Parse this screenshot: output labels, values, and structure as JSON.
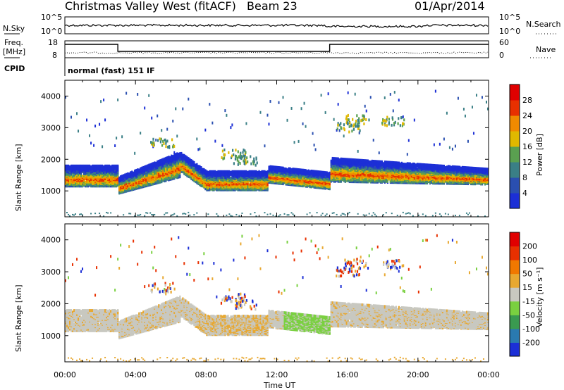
{
  "header": {
    "station": "Christmas Valley West (fitACF)",
    "beam": "Beam 23",
    "date": "01/Apr/2014"
  },
  "noise_panel": {
    "left_label": "N.Sky",
    "right_label": "N.Search",
    "left_ticks": [
      "10^5",
      "10^0"
    ],
    "right_ticks": [
      "10^5",
      "10^0"
    ]
  },
  "freq_panel": {
    "left_label": "Freq.",
    "left_unit": "[MHz]",
    "right_label": "Nave",
    "left_ticks": [
      "18",
      "8"
    ],
    "right_ticks": [
      "60",
      "0"
    ],
    "freq_steps": [
      {
        "from": 0,
        "to": 3.0,
        "level": "high"
      },
      {
        "from": 3.0,
        "to": 15.0,
        "level": "low"
      },
      {
        "from": 15.0,
        "to": 24,
        "level": "high"
      }
    ]
  },
  "cpid_panel": {
    "label": "CPID",
    "mode_text": "normal (fast) 151 IF"
  },
  "chart_data": [
    {
      "type": "heatmap",
      "name": "power",
      "ylabel": "Slant Range [km]",
      "xlabel": "Time UT",
      "ylim": [
        180,
        4500
      ],
      "yticks": [
        1000,
        2000,
        3000,
        4000
      ],
      "xticks": [
        "00:00",
        "04:00",
        "08:00",
        "12:00",
        "16:00",
        "20:00",
        "00:00"
      ],
      "xlim_hours": [
        0,
        24
      ],
      "colorbar": {
        "label": "Power [dB]",
        "ticks": [
          "4",
          "8",
          "12",
          "16",
          "20",
          "24",
          "28"
        ],
        "colors": [
          "#1c2fd6",
          "#2a4fb0",
          "#3a7f86",
          "#5aa050",
          "#e0b800",
          "#f08a00",
          "#e83000",
          "#e00000"
        ]
      }
    },
    {
      "type": "heatmap",
      "name": "velocity",
      "ylabel": "Slant Range [km]",
      "xlabel": "Time UT",
      "ylim": [
        180,
        4500
      ],
      "yticks": [
        1000,
        2000,
        3000,
        4000
      ],
      "xticks": [
        "00:00",
        "04:00",
        "08:00",
        "12:00",
        "16:00",
        "20:00",
        "00:00"
      ],
      "xlim_hours": [
        0,
        24
      ],
      "colorbar": {
        "label": "Velocity [m s⁻¹]",
        "ticks": [
          "200",
          "100",
          "50",
          "15",
          "-15",
          "-50",
          "-100",
          "-200"
        ],
        "colors": [
          "#1c2fd6",
          "#2a7ab0",
          "#3a9a50",
          "#7ad040",
          "#c8c8c0",
          "#e8a830",
          "#f07800",
          "#e83000",
          "#e00000"
        ]
      }
    }
  ]
}
